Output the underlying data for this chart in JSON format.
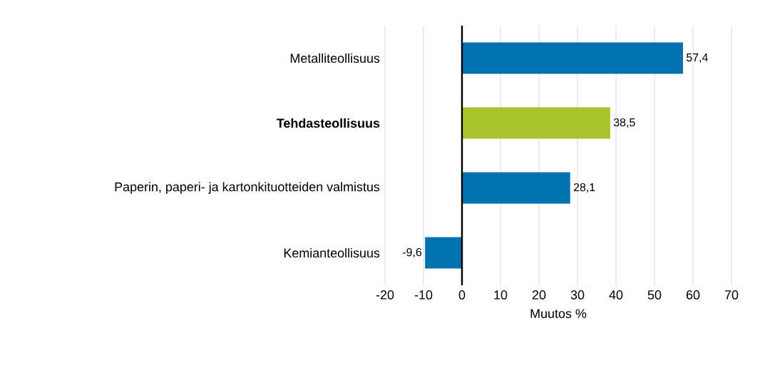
{
  "chart_data": {
    "type": "bar",
    "orientation": "horizontal",
    "categories": [
      "Metalliteollisuus",
      "**Tehdasteollisuus**",
      "Paperin, paperi- ja kartonkituotteiden valmistus",
      "Kemianteollisuus"
    ],
    "values": [
      57.4,
      38.5,
      28.1,
      -9.6
    ],
    "colors": [
      "#0072b2",
      "#a8c42b",
      "#0072b2",
      "#0072b2"
    ],
    "value_labels": [
      "57,4",
      "38,5",
      "28,1",
      "-9,6"
    ],
    "xlim": [
      -20,
      70
    ],
    "xticks": [
      -20,
      -10,
      0,
      10,
      20,
      30,
      40,
      50,
      60,
      70
    ],
    "xlabel": "Muutos %",
    "grid": "x"
  }
}
